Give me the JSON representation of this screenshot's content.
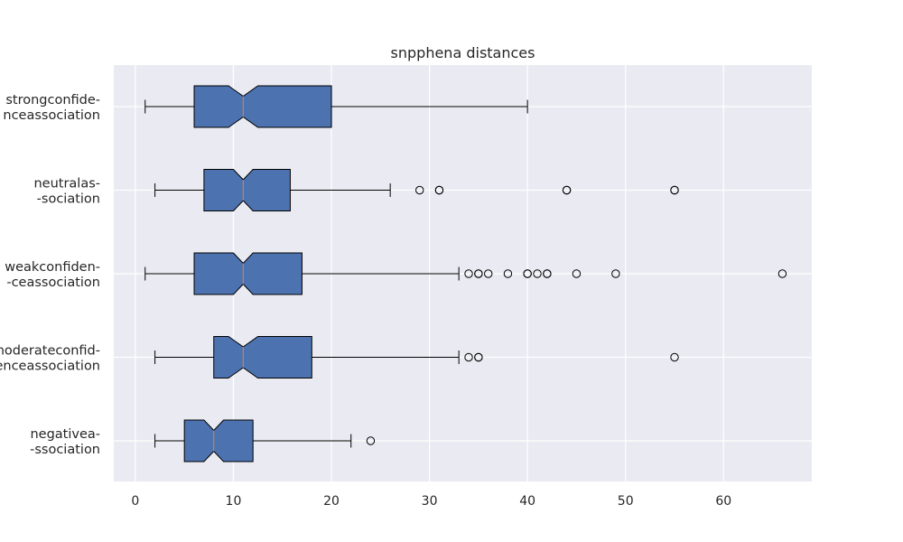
{
  "chart_data": {
    "type": "boxplot",
    "orientation": "horizontal",
    "notched": true,
    "title": "snpphena distances",
    "xlabel": "",
    "ylabel": "",
    "xlim": [
      -2.2,
      69
    ],
    "xticks": [
      0,
      10,
      20,
      30,
      40,
      50,
      60
    ],
    "grid": true,
    "colors": {
      "background": "#eaeaf2",
      "grid": "#ffffff",
      "box_fill": "#4c72b0",
      "box_edge": "#000000",
      "median": "#dd8452",
      "whisker": "#000000",
      "flier": "#000000"
    },
    "categories": [
      {
        "label": [
          "strongconfide-",
          "nceassociation"
        ],
        "whislo": 1,
        "q1": 6,
        "med": 11,
        "q3": 20,
        "whishi": 40,
        "notch_lo": 9.5,
        "notch_hi": 12.5,
        "fliers": []
      },
      {
        "label": [
          "neutralas-",
          "-sociation"
        ],
        "whislo": 2,
        "q1": 7,
        "med": 11,
        "q3": 15.8,
        "whishi": 26,
        "notch_lo": 10,
        "notch_hi": 12,
        "fliers": [
          29,
          31,
          31,
          44,
          44,
          55,
          55
        ]
      },
      {
        "label": [
          "weakconfiden-",
          "-ceassociation"
        ],
        "whislo": 1,
        "q1": 6,
        "med": 11,
        "q3": 17,
        "whishi": 33,
        "notch_lo": 10,
        "notch_hi": 12,
        "fliers": [
          34,
          35,
          35,
          36,
          38,
          40,
          40,
          41,
          42,
          42,
          45,
          49,
          66
        ]
      },
      {
        "label": [
          "moderateconfid-",
          "enceassociation"
        ],
        "whislo": 2,
        "q1": 8,
        "med": 11,
        "q3": 18,
        "whishi": 33,
        "notch_lo": 9.5,
        "notch_hi": 12.5,
        "fliers": [
          34,
          35,
          35,
          55
        ]
      },
      {
        "label": [
          "negativea-",
          "-ssociation"
        ],
        "whislo": 2,
        "q1": 5,
        "med": 8,
        "q3": 12,
        "whishi": 22,
        "notch_lo": 7,
        "notch_hi": 9,
        "fliers": [
          24
        ]
      }
    ]
  }
}
